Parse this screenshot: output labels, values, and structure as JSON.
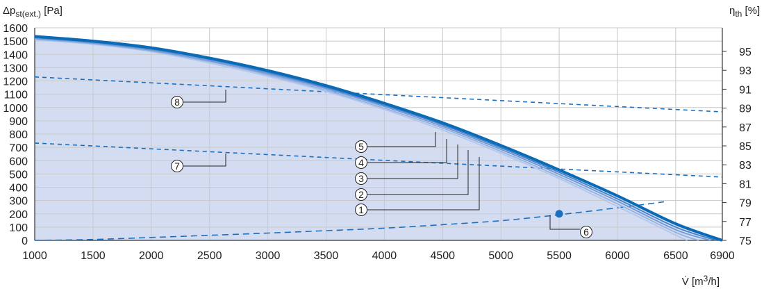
{
  "chart_data": {
    "type": "line",
    "x_axis": {
      "label_main": "V̇ [m",
      "label_sup": "3",
      "label_end": "/h]",
      "min": 1000,
      "max": 6900,
      "ticks": [
        "1000",
        "1500",
        "2000",
        "2500",
        "3000",
        "3500",
        "4000",
        "4500",
        "5000",
        "5500",
        "6000",
        "6500",
        "6900"
      ]
    },
    "y_axis_left": {
      "label_main": "Δp",
      "label_sub": "st(ext.)",
      "label_end": " [Pa]",
      "min": 0,
      "max": 1600,
      "ticks": [
        "0",
        "100",
        "200",
        "300",
        "400",
        "500",
        "600",
        "700",
        "800",
        "900",
        "1000",
        "1100",
        "1200",
        "1300",
        "1400",
        "1500",
        "1600"
      ]
    },
    "y_axis_right": {
      "label_main": "η",
      "label_sub": "th",
      "label_end": " [%]",
      "min": 75,
      "max": 97.5,
      "ticks": [
        "75",
        "77",
        "79",
        "81",
        "83",
        "85",
        "87",
        "89",
        "91",
        "93",
        "95"
      ]
    },
    "grid": true,
    "area_color": "#d3dcf0",
    "grid_color": "#c8c8c8",
    "series_colors": [
      "#b3c6ec",
      "#94b2e2",
      "#6f98d6",
      "#3d80c8",
      "#0b6ab5",
      "#1a6fbf"
    ],
    "fan_curves": [
      {
        "label": "1",
        "x": [
          1000,
          1500,
          2000,
          2500,
          3000,
          3500,
          4000,
          4500,
          5000,
          5500,
          6000,
          6500,
          6600
        ],
        "y": [
          1510,
          1475,
          1420,
          1335,
          1235,
          1120,
          985,
          830,
          655,
          465,
          255,
          40,
          0
        ]
      },
      {
        "label": "2",
        "x": [
          1000,
          1500,
          2000,
          2500,
          3000,
          3500,
          4000,
          4500,
          5000,
          5500,
          6000,
          6500,
          6700
        ],
        "y": [
          1515,
          1480,
          1425,
          1345,
          1245,
          1130,
          995,
          845,
          670,
          480,
          275,
          60,
          0
        ]
      },
      {
        "label": "3",
        "x": [
          1000,
          1500,
          2000,
          2500,
          3000,
          3500,
          4000,
          4500,
          5000,
          5500,
          6000,
          6500,
          6800
        ],
        "y": [
          1520,
          1485,
          1432,
          1352,
          1255,
          1142,
          1008,
          858,
          685,
          497,
          295,
          80,
          0
        ]
      },
      {
        "label": "4",
        "x": [
          1000,
          1500,
          2000,
          2500,
          3000,
          3500,
          4000,
          4500,
          5000,
          5500,
          6000,
          6500,
          6850
        ],
        "y": [
          1527,
          1492,
          1440,
          1362,
          1265,
          1152,
          1018,
          870,
          698,
          512,
          312,
          100,
          0
        ]
      },
      {
        "label": "5",
        "x": [
          1000,
          1500,
          2000,
          2500,
          3000,
          3500,
          4000,
          4500,
          5000,
          5500,
          6000,
          6500,
          6900
        ],
        "y": [
          1535,
          1500,
          1450,
          1372,
          1278,
          1165,
          1032,
          885,
          715,
          530,
          335,
          125,
          0
        ]
      }
    ],
    "efficiency_curves": [
      {
        "label": "7",
        "x": [
          1000,
          6900
        ],
        "y": [
          85.3,
          81.7
        ]
      },
      {
        "label": "8",
        "x": [
          1000,
          6900
        ],
        "y": [
          92.3,
          88.6
        ]
      }
    ],
    "system_curve": {
      "x": [
        1000,
        1500,
        2000,
        2500,
        3000,
        3500,
        4000,
        4500,
        5000,
        5500,
        6000,
        6400
      ],
      "y": [
        0,
        7,
        22,
        38,
        55,
        73,
        92,
        118,
        148,
        193,
        245,
        290
      ]
    },
    "operating_point": {
      "label": "6",
      "x": 5500,
      "y": 200
    },
    "callouts": [
      "1",
      "2",
      "3",
      "4",
      "5",
      "6",
      "7",
      "8"
    ]
  }
}
